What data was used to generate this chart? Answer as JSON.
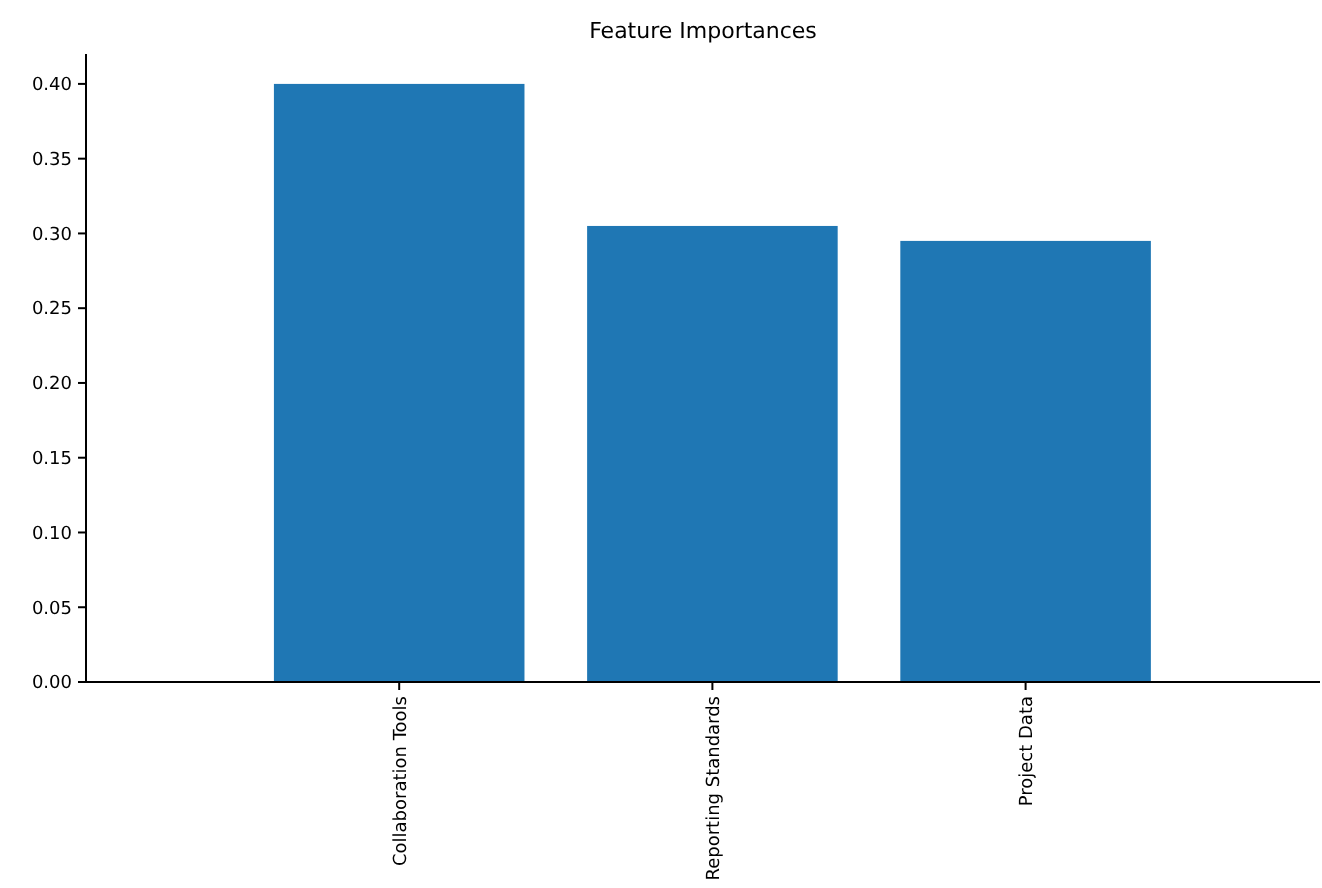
{
  "chart_data": {
    "type": "bar",
    "title": "Feature Importances",
    "categories": [
      "Collaboration Tools",
      "Reporting Standards",
      "Project Data"
    ],
    "values": [
      0.4,
      0.305,
      0.295
    ],
    "color": "#1f77b4",
    "ylim": [
      0,
      0.42
    ],
    "yticks": [
      {
        "value": 0,
        "label": "0.00"
      },
      {
        "value": 0.05,
        "label": "0.05"
      },
      {
        "value": 0.1,
        "label": "0.10"
      },
      {
        "value": 0.15,
        "label": "0.15"
      },
      {
        "value": 0.2,
        "label": "0.20"
      },
      {
        "value": 0.25,
        "label": "0.25"
      },
      {
        "value": 0.3,
        "label": "0.30"
      },
      {
        "value": 0.35,
        "label": "0.35"
      },
      {
        "value": 0.4,
        "label": "0.40"
      }
    ],
    "grid": false
  }
}
